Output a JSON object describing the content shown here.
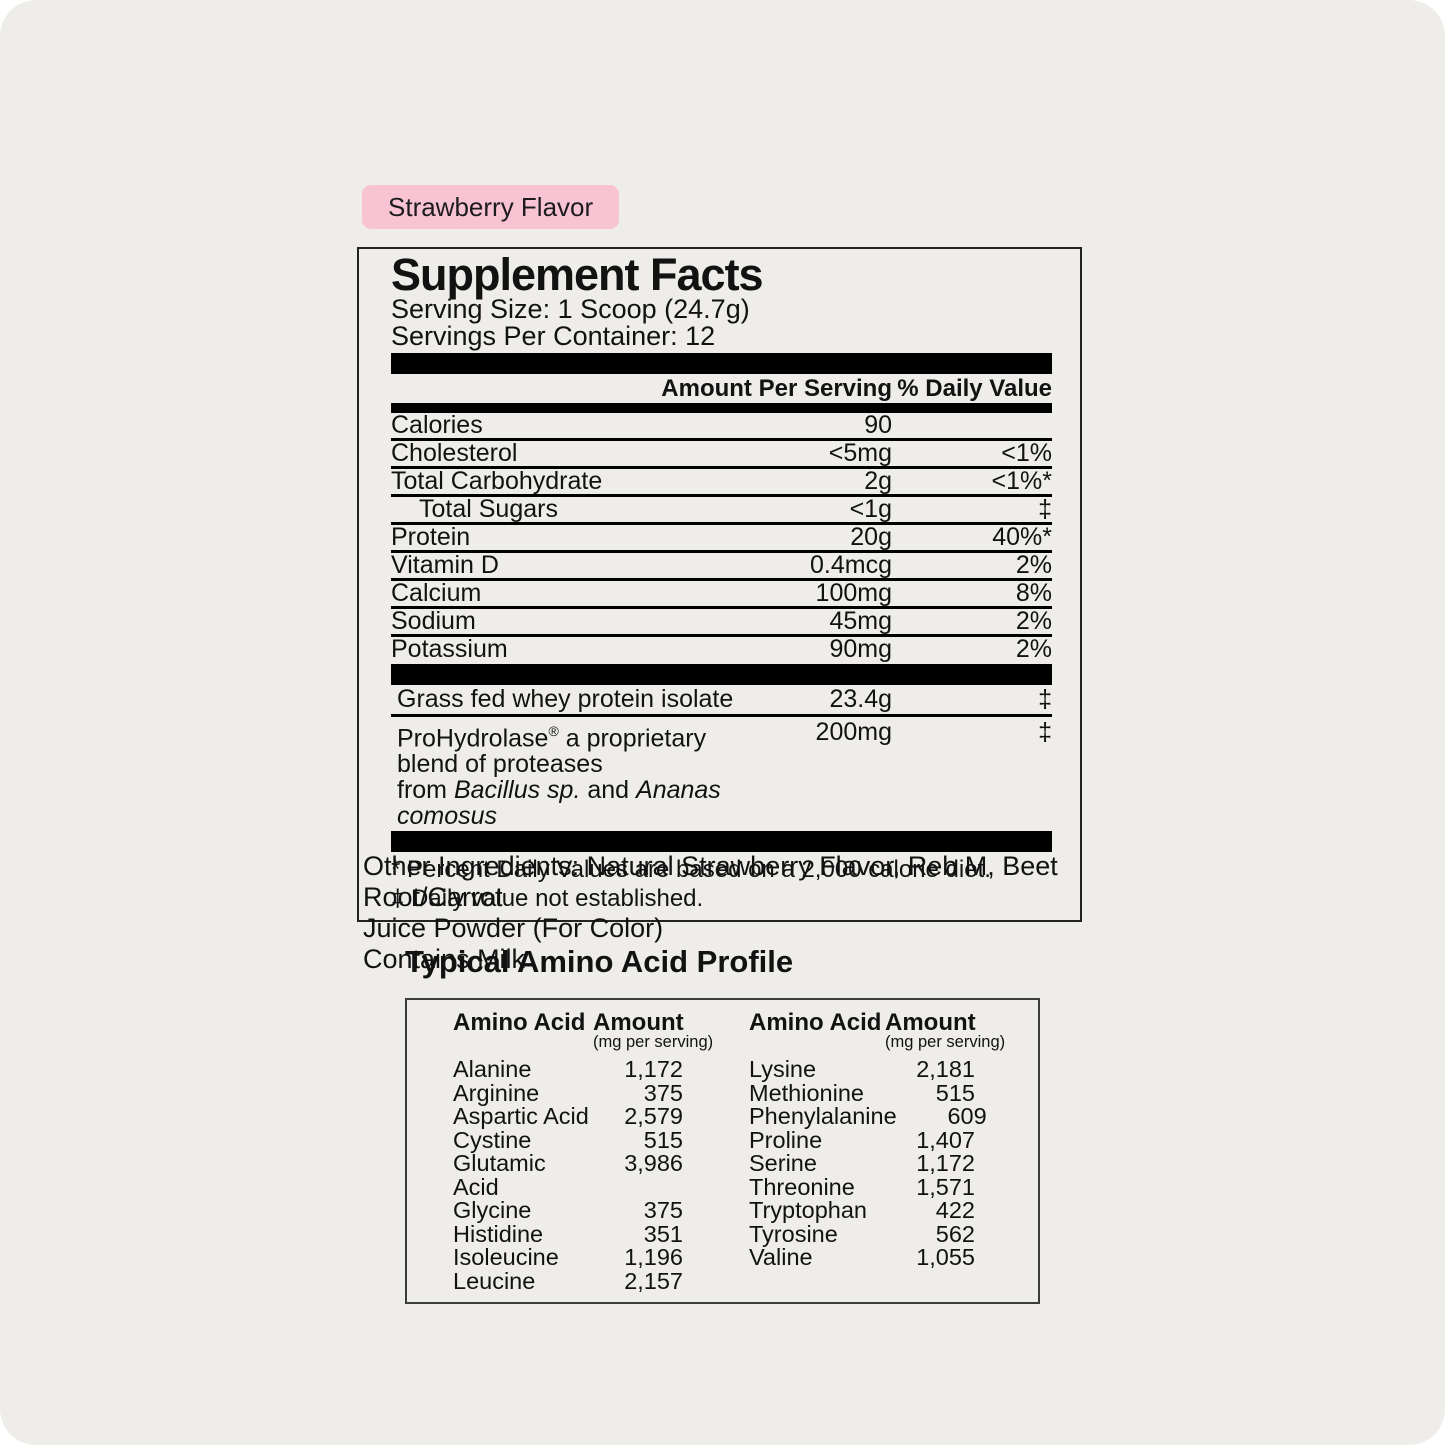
{
  "badge": {
    "label": "Strawberry Flavor",
    "bg_color": "#f8c4d3"
  },
  "colors": {
    "page_background": "#eeede9",
    "outer_background": "#ffffff",
    "text": "#121212",
    "rule": "#000000"
  },
  "facts": {
    "title": "Supplement Facts",
    "serving_size": "Serving Size: 1 Scoop (24.7g)",
    "servings_per_container": "Servings Per Container: 12",
    "col_amount": "Amount Per Serving",
    "col_dv": "% Daily Value",
    "rows": [
      {
        "name": "Calories",
        "amount": "90",
        "dv": "",
        "indent": false
      },
      {
        "name": "Cholesterol",
        "amount": "<5mg",
        "dv": "<1%",
        "indent": false
      },
      {
        "name": "Total Carbohydrate",
        "amount": "2g",
        "dv": "<1%*",
        "indent": false
      },
      {
        "name": "Total Sugars",
        "amount": "<1g",
        "dv": "‡",
        "indent": true
      },
      {
        "name": "Protein",
        "amount": "20g",
        "dv": "40%*",
        "indent": false
      },
      {
        "name": "Vitamin D",
        "amount": "0.4mcg",
        "dv": "2%",
        "indent": false
      },
      {
        "name": "Calcium",
        "amount": "100mg",
        "dv": "8%",
        "indent": false
      },
      {
        "name": "Sodium",
        "amount": "45mg",
        "dv": "2%",
        "indent": false
      },
      {
        "name": "Potassium",
        "amount": "90mg",
        "dv": "2%",
        "indent": false
      }
    ],
    "grass_fed": {
      "name": "Grass fed whey protein isolate",
      "amount": "23.4g",
      "dv": "‡"
    },
    "prohydrolase": {
      "name_main": "ProHydrolase",
      "name_sup": "®",
      "name_rest": " a proprietary blend of proteases",
      "line2_pre": "from ",
      "line2_species1": "Bacillus sp.",
      "line2_mid": " and ",
      "line2_species2": "Ananas comosus",
      "amount": "200mg",
      "dv": "‡"
    },
    "footnotes": [
      "* Percent Daily Values are based on a 2,000 calorie diet.",
      "‡ Daily value not established."
    ]
  },
  "other_ingredients": {
    "lines": [
      "Other Ingredients: Natural Strawberry Flavor, Reb M, Beet Root/Carrot",
      "Juice Powder (For Color)"
    ],
    "contains": "Contains Milk"
  },
  "amino": {
    "title": "Typical Amino Acid Profile",
    "col_name": "Amino Acid",
    "col_amount": "Amount",
    "col_unit": "(mg per serving)",
    "left": [
      {
        "name": "Alanine",
        "amount": "1,172"
      },
      {
        "name": "Arginine",
        "amount": "375"
      },
      {
        "name": "Aspartic Acid",
        "amount": "2,579"
      },
      {
        "name": "Cystine",
        "amount": "515"
      },
      {
        "name": "Glutamic Acid",
        "amount": "3,986"
      },
      {
        "name": "Glycine",
        "amount": "375"
      },
      {
        "name": "Histidine",
        "amount": "351"
      },
      {
        "name": "Isoleucine",
        "amount": "1,196"
      },
      {
        "name": "Leucine",
        "amount": "2,157"
      }
    ],
    "right": [
      {
        "name": "Lysine",
        "amount": "2,181"
      },
      {
        "name": "Methionine",
        "amount": "515"
      },
      {
        "name": "Phenylalanine",
        "amount": "609"
      },
      {
        "name": "Proline",
        "amount": "1,407"
      },
      {
        "name": "Serine",
        "amount": "1,172"
      },
      {
        "name": "Threonine",
        "amount": "1,571"
      },
      {
        "name": "Tryptophan",
        "amount": "422"
      },
      {
        "name": "Tyrosine",
        "amount": "562"
      },
      {
        "name": "Valine",
        "amount": "1,055"
      }
    ]
  }
}
